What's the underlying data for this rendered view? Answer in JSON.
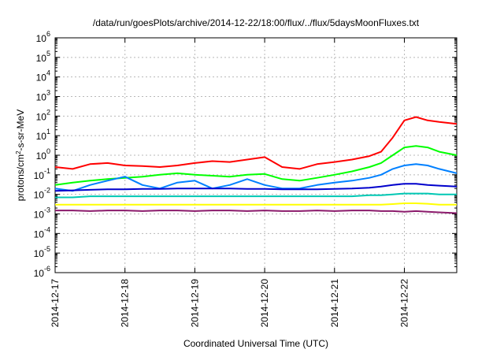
{
  "chart_data": {
    "type": "line",
    "title": "/data/run/goesPlots/archive/2014-12-22/18:00/flux/../flux/5daysMoonFluxes.txt",
    "xlabel": "Coordinated Universal Time (UTC)",
    "ylabel": {
      "base": "protons/cm",
      "sup": "2",
      "rest": "-s-sr-MeV"
    },
    "x_scale": "time",
    "xlim": [
      "2014-12-17",
      "2014-12-22 18:00"
    ],
    "x_ticks": [
      "2014-12-17",
      "2014-12-18",
      "2014-12-19",
      "2014-12-20",
      "2014-12-21",
      "2014-12-22"
    ],
    "y_scale": "log",
    "ylim": [
      1e-06,
      1000000.0
    ],
    "y_ticks": [
      {
        "base": "10",
        "exp": "-6",
        "value": 1e-06
      },
      {
        "base": "10",
        "exp": "-5",
        "value": 1e-05
      },
      {
        "base": "10",
        "exp": "-4",
        "value": 0.0001
      },
      {
        "base": "10",
        "exp": "-3",
        "value": 0.001
      },
      {
        "base": "10",
        "exp": "-2",
        "value": 0.01
      },
      {
        "base": "10",
        "exp": "-1",
        "value": 0.1
      },
      {
        "base": "10",
        "exp": "0",
        "value": 1
      },
      {
        "base": "10",
        "exp": "1",
        "value": 10
      },
      {
        "base": "10",
        "exp": "2",
        "value": 100
      },
      {
        "base": "10",
        "exp": "3",
        "value": 1000
      },
      {
        "base": "10",
        "exp": "4",
        "value": 10000
      },
      {
        "base": "10",
        "exp": "5",
        "value": 100000
      },
      {
        "base": "10",
        "exp": "6",
        "value": 1000000
      }
    ],
    "grid": true,
    "legend": "none",
    "series": [
      {
        "color": "#ff0000",
        "x": [
          "2014-12-17 00:00",
          "2014-12-17 06:00",
          "2014-12-17 12:00",
          "2014-12-17 18:00",
          "2014-12-18 00:00",
          "2014-12-18 06:00",
          "2014-12-18 12:00",
          "2014-12-18 18:00",
          "2014-12-19 00:00",
          "2014-12-19 06:00",
          "2014-12-19 12:00",
          "2014-12-19 18:00",
          "2014-12-20 00:00",
          "2014-12-20 06:00",
          "2014-12-20 12:00",
          "2014-12-20 18:00",
          "2014-12-21 00:00",
          "2014-12-21 06:00",
          "2014-12-21 12:00",
          "2014-12-21 16:00",
          "2014-12-21 20:00",
          "2014-12-22 00:00",
          "2014-12-22 04:00",
          "2014-12-22 08:00",
          "2014-12-22 12:00",
          "2014-12-22 18:00"
        ],
        "y": [
          0.25,
          0.2,
          0.35,
          0.4,
          0.3,
          0.28,
          0.25,
          0.3,
          0.4,
          0.5,
          0.45,
          0.6,
          0.8,
          0.25,
          0.2,
          0.35,
          0.45,
          0.6,
          0.9,
          1.5,
          8,
          60,
          90,
          60,
          50,
          40
        ]
      },
      {
        "color": "#00ff00",
        "x": [
          "2014-12-17 00:00",
          "2014-12-17 06:00",
          "2014-12-17 12:00",
          "2014-12-17 18:00",
          "2014-12-18 00:00",
          "2014-12-18 06:00",
          "2014-12-18 12:00",
          "2014-12-18 18:00",
          "2014-12-19 00:00",
          "2014-12-19 06:00",
          "2014-12-19 12:00",
          "2014-12-19 18:00",
          "2014-12-20 00:00",
          "2014-12-20 06:00",
          "2014-12-20 12:00",
          "2014-12-20 18:00",
          "2014-12-21 00:00",
          "2014-12-21 06:00",
          "2014-12-21 12:00",
          "2014-12-21 16:00",
          "2014-12-21 20:00",
          "2014-12-22 00:00",
          "2014-12-22 04:00",
          "2014-12-22 08:00",
          "2014-12-22 12:00",
          "2014-12-22 18:00"
        ],
        "y": [
          0.03,
          0.04,
          0.05,
          0.06,
          0.07,
          0.08,
          0.1,
          0.12,
          0.1,
          0.09,
          0.08,
          0.1,
          0.11,
          0.06,
          0.05,
          0.07,
          0.1,
          0.15,
          0.25,
          0.4,
          1,
          2.5,
          3,
          2.5,
          1.5,
          1
        ]
      },
      {
        "color": "#0080ff",
        "x": [
          "2014-12-17 00:00",
          "2014-12-17 06:00",
          "2014-12-17 12:00",
          "2014-12-17 18:00",
          "2014-12-18 00:00",
          "2014-12-18 06:00",
          "2014-12-18 12:00",
          "2014-12-18 18:00",
          "2014-12-19 00:00",
          "2014-12-19 06:00",
          "2014-12-19 12:00",
          "2014-12-19 18:00",
          "2014-12-20 00:00",
          "2014-12-20 06:00",
          "2014-12-20 12:00",
          "2014-12-20 18:00",
          "2014-12-21 00:00",
          "2014-12-21 06:00",
          "2014-12-21 12:00",
          "2014-12-21 16:00",
          "2014-12-21 20:00",
          "2014-12-22 00:00",
          "2014-12-22 04:00",
          "2014-12-22 08:00",
          "2014-12-22 12:00",
          "2014-12-22 18:00"
        ],
        "y": [
          0.02,
          0.015,
          0.03,
          0.05,
          0.08,
          0.03,
          0.02,
          0.04,
          0.05,
          0.02,
          0.03,
          0.06,
          0.03,
          0.02,
          0.02,
          0.03,
          0.04,
          0.05,
          0.07,
          0.1,
          0.2,
          0.3,
          0.35,
          0.3,
          0.2,
          0.12
        ]
      },
      {
        "color": "#0000cc",
        "x": [
          "2014-12-17 00:00",
          "2014-12-17 06:00",
          "2014-12-17 12:00",
          "2014-12-17 18:00",
          "2014-12-18 00:00",
          "2014-12-18 06:00",
          "2014-12-18 12:00",
          "2014-12-18 18:00",
          "2014-12-19 00:00",
          "2014-12-19 06:00",
          "2014-12-19 12:00",
          "2014-12-19 18:00",
          "2014-12-20 00:00",
          "2014-12-20 06:00",
          "2014-12-20 12:00",
          "2014-12-20 18:00",
          "2014-12-21 00:00",
          "2014-12-21 06:00",
          "2014-12-21 12:00",
          "2014-12-21 16:00",
          "2014-12-21 20:00",
          "2014-12-22 00:00",
          "2014-12-22 04:00",
          "2014-12-22 08:00",
          "2014-12-22 12:00",
          "2014-12-22 18:00"
        ],
        "y": [
          0.015,
          0.016,
          0.017,
          0.018,
          0.018,
          0.019,
          0.019,
          0.02,
          0.02,
          0.02,
          0.02,
          0.019,
          0.019,
          0.018,
          0.018,
          0.018,
          0.019,
          0.02,
          0.022,
          0.025,
          0.03,
          0.035,
          0.035,
          0.03,
          0.028,
          0.025
        ]
      },
      {
        "color": "#00c8b4",
        "x": [
          "2014-12-17 00:00",
          "2014-12-17 06:00",
          "2014-12-17 12:00",
          "2014-12-17 18:00",
          "2014-12-18 00:00",
          "2014-12-18 06:00",
          "2014-12-18 12:00",
          "2014-12-18 18:00",
          "2014-12-19 00:00",
          "2014-12-19 06:00",
          "2014-12-19 12:00",
          "2014-12-19 18:00",
          "2014-12-20 00:00",
          "2014-12-20 06:00",
          "2014-12-20 12:00",
          "2014-12-20 18:00",
          "2014-12-21 00:00",
          "2014-12-21 06:00",
          "2014-12-21 12:00",
          "2014-12-21 16:00",
          "2014-12-21 20:00",
          "2014-12-22 00:00",
          "2014-12-22 04:00",
          "2014-12-22 08:00",
          "2014-12-22 12:00",
          "2014-12-22 18:00"
        ],
        "y": [
          0.007,
          0.007,
          0.008,
          0.008,
          0.008,
          0.008,
          0.008,
          0.008,
          0.008,
          0.008,
          0.008,
          0.008,
          0.008,
          0.008,
          0.008,
          0.008,
          0.008,
          0.008,
          0.009,
          0.009,
          0.01,
          0.011,
          0.011,
          0.011,
          0.01,
          0.01
        ]
      },
      {
        "color": "#ffff00",
        "x": [
          "2014-12-17 00:00",
          "2014-12-17 06:00",
          "2014-12-17 12:00",
          "2014-12-17 18:00",
          "2014-12-18 00:00",
          "2014-12-18 06:00",
          "2014-12-18 12:00",
          "2014-12-18 18:00",
          "2014-12-19 00:00",
          "2014-12-19 06:00",
          "2014-12-19 12:00",
          "2014-12-19 18:00",
          "2014-12-20 00:00",
          "2014-12-20 06:00",
          "2014-12-20 12:00",
          "2014-12-20 18:00",
          "2014-12-21 00:00",
          "2014-12-21 06:00",
          "2014-12-21 12:00",
          "2014-12-21 16:00",
          "2014-12-21 20:00",
          "2014-12-22 00:00",
          "2014-12-22 04:00",
          "2014-12-22 08:00",
          "2014-12-22 12:00",
          "2014-12-22 18:00"
        ],
        "y": [
          0.003,
          0.003,
          0.003,
          0.003,
          0.003,
          0.003,
          0.003,
          0.003,
          0.003,
          0.003,
          0.003,
          0.003,
          0.003,
          0.003,
          0.003,
          0.003,
          0.003,
          0.003,
          0.003,
          0.003,
          0.0032,
          0.0035,
          0.0035,
          0.0033,
          0.003,
          0.003
        ]
      },
      {
        "color": "#8b1a6b",
        "x": [
          "2014-12-17 00:00",
          "2014-12-17 06:00",
          "2014-12-17 12:00",
          "2014-12-17 18:00",
          "2014-12-18 00:00",
          "2014-12-18 06:00",
          "2014-12-18 12:00",
          "2014-12-18 18:00",
          "2014-12-19 00:00",
          "2014-12-19 06:00",
          "2014-12-19 12:00",
          "2014-12-19 18:00",
          "2014-12-20 00:00",
          "2014-12-20 06:00",
          "2014-12-20 12:00",
          "2014-12-20 18:00",
          "2014-12-21 00:00",
          "2014-12-21 06:00",
          "2014-12-21 12:00",
          "2014-12-21 16:00",
          "2014-12-21 20:00",
          "2014-12-22 00:00",
          "2014-12-22 04:00",
          "2014-12-22 08:00",
          "2014-12-22 12:00",
          "2014-12-22 18:00"
        ],
        "y": [
          0.0015,
          0.0015,
          0.0014,
          0.0015,
          0.0015,
          0.0014,
          0.0015,
          0.0015,
          0.0014,
          0.0015,
          0.0015,
          0.0014,
          0.0015,
          0.0014,
          0.0014,
          0.0015,
          0.0014,
          0.0015,
          0.0015,
          0.0014,
          0.0014,
          0.0013,
          0.0014,
          0.0013,
          0.0012,
          0.0011
        ]
      }
    ]
  }
}
